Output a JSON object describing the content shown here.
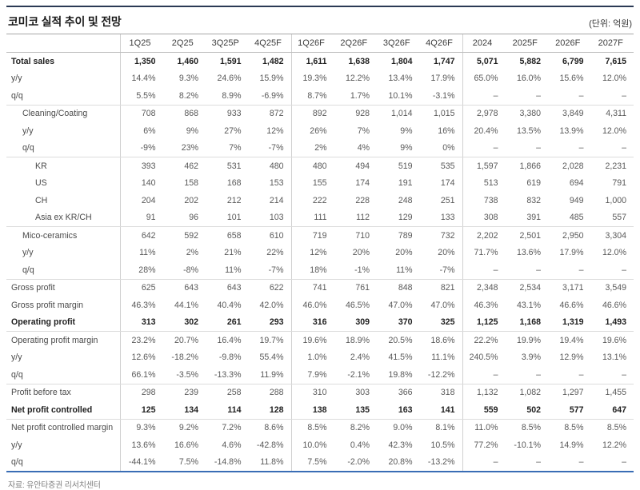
{
  "header": {
    "title": "코미코 실적 추이 및 전망",
    "unit": "(단위: 억원)"
  },
  "table": {
    "columns": [
      "",
      "1Q25",
      "2Q25",
      "3Q25P",
      "4Q25F",
      "1Q26F",
      "2Q26F",
      "3Q26F",
      "4Q26F",
      "2024",
      "2025F",
      "2026F",
      "2027F"
    ],
    "rows": [
      {
        "label": "Total sales",
        "indent": 0,
        "bold": true,
        "sep": false,
        "values": [
          "1,350",
          "1,460",
          "1,591",
          "1,482",
          "1,611",
          "1,638",
          "1,804",
          "1,747",
          "5,071",
          "5,882",
          "6,799",
          "7,615"
        ]
      },
      {
        "label": "y/y",
        "indent": 0,
        "bold": false,
        "sep": false,
        "values": [
          "14.4%",
          "9.3%",
          "24.6%",
          "15.9%",
          "19.3%",
          "12.2%",
          "13.4%",
          "17.9%",
          "65.0%",
          "16.0%",
          "15.6%",
          "12.0%"
        ]
      },
      {
        "label": "q/q",
        "indent": 0,
        "bold": false,
        "sep": true,
        "values": [
          "5.5%",
          "8.2%",
          "8.9%",
          "-6.9%",
          "8.7%",
          "1.7%",
          "10.1%",
          "-3.1%",
          "–",
          "–",
          "–",
          "–"
        ]
      },
      {
        "label": "Cleaning/Coating",
        "indent": 1,
        "bold": false,
        "sep": false,
        "values": [
          "708",
          "868",
          "933",
          "872",
          "892",
          "928",
          "1,014",
          "1,015",
          "2,978",
          "3,380",
          "3,849",
          "4,311"
        ]
      },
      {
        "label": "y/y",
        "indent": 1,
        "bold": false,
        "sep": false,
        "values": [
          "6%",
          "9%",
          "27%",
          "12%",
          "26%",
          "7%",
          "9%",
          "16%",
          "20.4%",
          "13.5%",
          "13.9%",
          "12.0%"
        ]
      },
      {
        "label": "q/q",
        "indent": 1,
        "bold": false,
        "sep": true,
        "values": [
          "-9%",
          "23%",
          "7%",
          "-7%",
          "2%",
          "4%",
          "9%",
          "0%",
          "–",
          "–",
          "–",
          "–"
        ]
      },
      {
        "label": "KR",
        "indent": 2,
        "bold": false,
        "sep": false,
        "values": [
          "393",
          "462",
          "531",
          "480",
          "480",
          "494",
          "519",
          "535",
          "1,597",
          "1,866",
          "2,028",
          "2,231"
        ]
      },
      {
        "label": "US",
        "indent": 2,
        "bold": false,
        "sep": false,
        "values": [
          "140",
          "158",
          "168",
          "153",
          "155",
          "174",
          "191",
          "174",
          "513",
          "619",
          "694",
          "791"
        ]
      },
      {
        "label": "CH",
        "indent": 2,
        "bold": false,
        "sep": false,
        "values": [
          "204",
          "202",
          "212",
          "214",
          "222",
          "228",
          "248",
          "251",
          "738",
          "832",
          "949",
          "1,000"
        ]
      },
      {
        "label": "Asia ex KR/CH",
        "indent": 2,
        "bold": false,
        "sep": true,
        "values": [
          "91",
          "96",
          "101",
          "103",
          "111",
          "112",
          "129",
          "133",
          "308",
          "391",
          "485",
          "557"
        ]
      },
      {
        "label": "Mico-ceramics",
        "indent": 1,
        "bold": false,
        "sep": false,
        "values": [
          "642",
          "592",
          "658",
          "610",
          "719",
          "710",
          "789",
          "732",
          "2,202",
          "2,501",
          "2,950",
          "3,304"
        ]
      },
      {
        "label": "y/y",
        "indent": 1,
        "bold": false,
        "sep": false,
        "values": [
          "11%",
          "2%",
          "21%",
          "22%",
          "12%",
          "20%",
          "20%",
          "20%",
          "71.7%",
          "13.6%",
          "17.9%",
          "12.0%"
        ]
      },
      {
        "label": "q/q",
        "indent": 1,
        "bold": false,
        "sep": true,
        "values": [
          "28%",
          "-8%",
          "11%",
          "-7%",
          "18%",
          "-1%",
          "11%",
          "-7%",
          "–",
          "–",
          "–",
          "–"
        ]
      },
      {
        "label": "Gross profit",
        "indent": 0,
        "bold": false,
        "sep": false,
        "values": [
          "625",
          "643",
          "643",
          "622",
          "741",
          "761",
          "848",
          "821",
          "2,348",
          "2,534",
          "3,171",
          "3,549"
        ]
      },
      {
        "label": "Gross profit margin",
        "indent": 0,
        "bold": false,
        "sep": false,
        "values": [
          "46.3%",
          "44.1%",
          "40.4%",
          "42.0%",
          "46.0%",
          "46.5%",
          "47.0%",
          "47.0%",
          "46.3%",
          "43.1%",
          "46.6%",
          "46.6%"
        ]
      },
      {
        "label": "Operating profit",
        "indent": 0,
        "bold": true,
        "sep": true,
        "values": [
          "313",
          "302",
          "261",
          "293",
          "316",
          "309",
          "370",
          "325",
          "1,125",
          "1,168",
          "1,319",
          "1,493"
        ]
      },
      {
        "label": "Operating profit margin",
        "indent": 0,
        "bold": false,
        "sep": false,
        "values": [
          "23.2%",
          "20.7%",
          "16.4%",
          "19.7%",
          "19.6%",
          "18.9%",
          "20.5%",
          "18.6%",
          "22.2%",
          "19.9%",
          "19.4%",
          "19.6%"
        ]
      },
      {
        "label": "y/y",
        "indent": 0,
        "bold": false,
        "sep": false,
        "values": [
          "12.6%",
          "-18.2%",
          "-9.8%",
          "55.4%",
          "1.0%",
          "2.4%",
          "41.5%",
          "11.1%",
          "240.5%",
          "3.9%",
          "12.9%",
          "13.1%"
        ]
      },
      {
        "label": "q/q",
        "indent": 0,
        "bold": false,
        "sep": true,
        "values": [
          "66.1%",
          "-3.5%",
          "-13.3%",
          "11.9%",
          "7.9%",
          "-2.1%",
          "19.8%",
          "-12.2%",
          "–",
          "–",
          "–",
          "–"
        ]
      },
      {
        "label": "Profit before tax",
        "indent": 0,
        "bold": false,
        "sep": false,
        "values": [
          "298",
          "239",
          "258",
          "288",
          "310",
          "303",
          "366",
          "318",
          "1,132",
          "1,082",
          "1,297",
          "1,455"
        ]
      },
      {
        "label": "Net profit controlled",
        "indent": 0,
        "bold": true,
        "sep": true,
        "values": [
          "125",
          "134",
          "114",
          "128",
          "138",
          "135",
          "163",
          "141",
          "559",
          "502",
          "577",
          "647"
        ]
      },
      {
        "label": "Net profit controlled margin",
        "indent": 0,
        "bold": false,
        "sep": false,
        "values": [
          "9.3%",
          "9.2%",
          "7.2%",
          "8.6%",
          "8.5%",
          "8.2%",
          "9.0%",
          "8.1%",
          "11.0%",
          "8.5%",
          "8.5%",
          "8.5%"
        ]
      },
      {
        "label": "y/y",
        "indent": 0,
        "bold": false,
        "sep": false,
        "values": [
          "13.6%",
          "16.6%",
          "4.6%",
          "-42.8%",
          "10.0%",
          "0.4%",
          "42.3%",
          "10.5%",
          "77.2%",
          "-10.1%",
          "14.9%",
          "12.2%"
        ]
      },
      {
        "label": "q/q",
        "indent": 0,
        "bold": false,
        "sep": false,
        "values": [
          "-44.1%",
          "7.5%",
          "-14.8%",
          "11.8%",
          "7.5%",
          "-2.0%",
          "20.8%",
          "-13.2%",
          "–",
          "–",
          "–",
          "–"
        ]
      }
    ]
  },
  "footer": {
    "source": "자료: 유안타증권 리서치센터"
  },
  "colors": {
    "top_rule": "#2b3a55",
    "bottom_rule": "#3a6db5"
  }
}
